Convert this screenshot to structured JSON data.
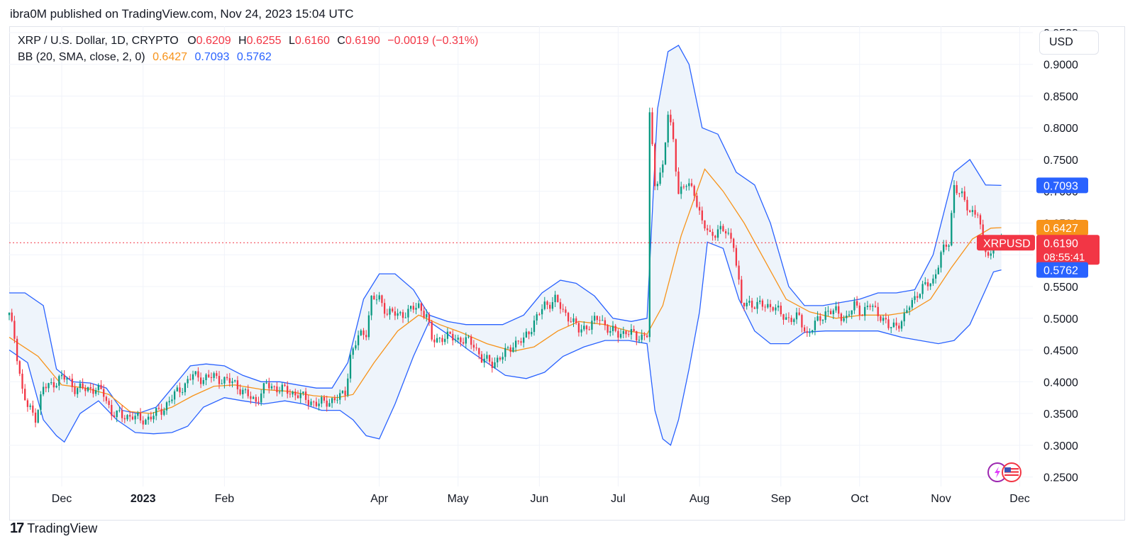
{
  "header": {
    "published": "ibra0M published on TradingView.com, Nov 24, 2023 15:04 UTC"
  },
  "legend": {
    "symbol": "XRP / U.S. Dollar, 1D, CRYPTO",
    "o_label": "O",
    "o_value": "0.6209",
    "h_label": "H",
    "h_value": "0.6255",
    "l_label": "L",
    "l_value": "0.6160",
    "c_label": "C",
    "c_value": "0.6190",
    "change": "−0.0019 (−0.31%)",
    "bb_label": "BB (20, SMA, close, 2, 0)",
    "bb_basis": "0.6427",
    "bb_upper": "0.7093",
    "bb_lower": "0.5762"
  },
  "currency_button": "USD",
  "price_tags": {
    "upper": "0.7093",
    "basis": "0.6427",
    "last": "0.6190",
    "countdown": "08:55:41",
    "lower": "0.5762",
    "symbol_tag": "XRPUSD"
  },
  "footer": {
    "brand": "TradingView",
    "mark": "17"
  },
  "colors": {
    "up": "#089981",
    "down": "#f23645",
    "basis": "#f7931a",
    "band": "#2962ff",
    "band_fill": "#eef4fb",
    "grid": "#f0f3fa"
  },
  "chart_data": {
    "type": "candlestick",
    "title": "XRP / U.S. Dollar, 1D, CRYPTO",
    "x_range": [
      "2022-11-11",
      "2023-12-06"
    ],
    "y_range": [
      0.235,
      0.96
    ],
    "y_ticks": [
      "0.2500",
      "0.3000",
      "0.3500",
      "0.4000",
      "0.4500",
      "0.5000",
      "0.5500",
      "0.6000",
      "0.6500",
      "0.7000",
      "0.7500",
      "0.8000",
      "0.8500",
      "0.9000",
      "0.9500"
    ],
    "x_ticks": [
      {
        "label": "Dec",
        "date": "2022-12-01",
        "bold": false
      },
      {
        "label": "2023",
        "date": "2023-01-01",
        "bold": true
      },
      {
        "label": "Feb",
        "date": "2023-02-01",
        "bold": false
      },
      {
        "label": "Apr",
        "date": "2023-04-01",
        "bold": false
      },
      {
        "label": "May",
        "date": "2023-05-01",
        "bold": false
      },
      {
        "label": "Jun",
        "date": "2023-06-01",
        "bold": false
      },
      {
        "label": "Jul",
        "date": "2023-07-01",
        "bold": false
      },
      {
        "label": "Aug",
        "date": "2023-08-01",
        "bold": false
      },
      {
        "label": "Sep",
        "date": "2023-09-01",
        "bold": false
      },
      {
        "label": "Oct",
        "date": "2023-10-01",
        "bold": false
      },
      {
        "label": "Nov",
        "date": "2023-11-01",
        "bold": false
      },
      {
        "label": "Dec",
        "date": "2023-12-01",
        "bold": false
      }
    ],
    "last_price": 0.619,
    "close_series": [
      [
        "2022-11-11",
        0.505
      ],
      [
        "2022-11-13",
        0.47
      ],
      [
        "2022-11-16",
        0.385
      ],
      [
        "2022-11-18",
        0.36
      ],
      [
        "2022-11-21",
        0.345
      ],
      [
        "2022-11-24",
        0.39
      ],
      [
        "2022-11-27",
        0.395
      ],
      [
        "2022-11-30",
        0.405
      ],
      [
        "2022-12-03",
        0.405
      ],
      [
        "2022-12-06",
        0.39
      ],
      [
        "2022-12-10",
        0.388
      ],
      [
        "2022-12-14",
        0.39
      ],
      [
        "2022-12-17",
        0.38
      ],
      [
        "2022-12-20",
        0.352
      ],
      [
        "2022-12-24",
        0.345
      ],
      [
        "2022-12-28",
        0.347
      ],
      [
        "2022-12-31",
        0.338
      ],
      [
        "2023-01-04",
        0.345
      ],
      [
        "2023-01-08",
        0.355
      ],
      [
        "2023-01-12",
        0.375
      ],
      [
        "2023-01-16",
        0.392
      ],
      [
        "2023-01-20",
        0.41
      ],
      [
        "2023-01-24",
        0.405
      ],
      [
        "2023-01-28",
        0.408
      ],
      [
        "2023-02-01",
        0.402
      ],
      [
        "2023-02-05",
        0.398
      ],
      [
        "2023-02-09",
        0.38
      ],
      [
        "2023-02-13",
        0.37
      ],
      [
        "2023-02-17",
        0.395
      ],
      [
        "2023-02-21",
        0.39
      ],
      [
        "2023-02-25",
        0.385
      ],
      [
        "2023-03-01",
        0.38
      ],
      [
        "2023-03-05",
        0.37
      ],
      [
        "2023-03-09",
        0.365
      ],
      [
        "2023-03-13",
        0.37
      ],
      [
        "2023-03-17",
        0.375
      ],
      [
        "2023-03-19",
        0.385
      ],
      [
        "2023-03-21",
        0.44
      ],
      [
        "2023-03-24",
        0.47
      ],
      [
        "2023-03-27",
        0.48
      ],
      [
        "2023-03-29",
        0.53
      ],
      [
        "2023-04-01",
        0.53
      ],
      [
        "2023-04-04",
        0.51
      ],
      [
        "2023-04-08",
        0.505
      ],
      [
        "2023-04-12",
        0.51
      ],
      [
        "2023-04-16",
        0.52
      ],
      [
        "2023-04-19",
        0.505
      ],
      [
        "2023-04-21",
        0.465
      ],
      [
        "2023-04-25",
        0.47
      ],
      [
        "2023-04-29",
        0.47
      ],
      [
        "2023-05-03",
        0.465
      ],
      [
        "2023-05-07",
        0.46
      ],
      [
        "2023-05-10",
        0.435
      ],
      [
        "2023-05-14",
        0.43
      ],
      [
        "2023-05-18",
        0.44
      ],
      [
        "2023-05-22",
        0.46
      ],
      [
        "2023-05-26",
        0.465
      ],
      [
        "2023-05-30",
        0.495
      ],
      [
        "2023-06-03",
        0.52
      ],
      [
        "2023-06-07",
        0.53
      ],
      [
        "2023-06-10",
        0.51
      ],
      [
        "2023-06-13",
        0.5
      ],
      [
        "2023-06-16",
        0.48
      ],
      [
        "2023-06-20",
        0.49
      ],
      [
        "2023-06-24",
        0.5
      ],
      [
        "2023-06-28",
        0.48
      ],
      [
        "2023-07-01",
        0.475
      ],
      [
        "2023-07-04",
        0.48
      ],
      [
        "2023-07-08",
        0.47
      ],
      [
        "2023-07-12",
        0.475
      ],
      [
        "2023-07-13",
        0.82
      ],
      [
        "2023-07-15",
        0.71
      ],
      [
        "2023-07-18",
        0.74
      ],
      [
        "2023-07-20",
        0.82
      ],
      [
        "2023-07-22",
        0.78
      ],
      [
        "2023-07-24",
        0.7
      ],
      [
        "2023-07-27",
        0.71
      ],
      [
        "2023-07-30",
        0.7
      ],
      [
        "2023-08-02",
        0.65
      ],
      [
        "2023-08-05",
        0.63
      ],
      [
        "2023-08-08",
        0.64
      ],
      [
        "2023-08-11",
        0.635
      ],
      [
        "2023-08-14",
        0.62
      ],
      [
        "2023-08-17",
        0.52
      ],
      [
        "2023-08-20",
        0.525
      ],
      [
        "2023-08-23",
        0.52
      ],
      [
        "2023-08-26",
        0.52
      ],
      [
        "2023-08-29",
        0.52
      ],
      [
        "2023-09-01",
        0.505
      ],
      [
        "2023-09-04",
        0.5
      ],
      [
        "2023-09-08",
        0.5
      ],
      [
        "2023-09-11",
        0.475
      ],
      [
        "2023-09-14",
        0.49
      ],
      [
        "2023-09-18",
        0.51
      ],
      [
        "2023-09-22",
        0.51
      ],
      [
        "2023-09-26",
        0.5
      ],
      [
        "2023-09-29",
        0.52
      ],
      [
        "2023-10-02",
        0.51
      ],
      [
        "2023-10-05",
        0.52
      ],
      [
        "2023-10-09",
        0.505
      ],
      [
        "2023-10-12",
        0.485
      ],
      [
        "2023-10-15",
        0.49
      ],
      [
        "2023-10-18",
        0.5
      ],
      [
        "2023-10-20",
        0.52
      ],
      [
        "2023-10-23",
        0.54
      ],
      [
        "2023-10-26",
        0.55
      ],
      [
        "2023-10-29",
        0.56
      ],
      [
        "2023-11-01",
        0.6
      ],
      [
        "2023-11-04",
        0.62
      ],
      [
        "2023-11-06",
        0.71
      ],
      [
        "2023-11-09",
        0.69
      ],
      [
        "2023-11-12",
        0.67
      ],
      [
        "2023-11-15",
        0.665
      ],
      [
        "2023-11-17",
        0.615
      ],
      [
        "2023-11-20",
        0.6
      ],
      [
        "2023-11-22",
        0.62
      ],
      [
        "2023-11-24",
        0.619
      ]
    ],
    "bb_upper_series": [
      [
        "2022-11-11",
        0.54
      ],
      [
        "2022-11-17",
        0.54
      ],
      [
        "2022-11-24",
        0.52
      ],
      [
        "2022-11-29",
        0.42
      ],
      [
        "2022-12-05",
        0.4
      ],
      [
        "2022-12-12",
        0.398
      ],
      [
        "2022-12-18",
        0.39
      ],
      [
        "2022-12-24",
        0.355
      ],
      [
        "2022-12-30",
        0.35
      ],
      [
        "2023-01-06",
        0.36
      ],
      [
        "2023-01-13",
        0.395
      ],
      [
        "2023-01-19",
        0.425
      ],
      [
        "2023-01-25",
        0.428
      ],
      [
        "2023-02-01",
        0.425
      ],
      [
        "2023-02-08",
        0.41
      ],
      [
        "2023-02-15",
        0.4
      ],
      [
        "2023-02-22",
        0.4
      ],
      [
        "2023-03-01",
        0.395
      ],
      [
        "2023-03-08",
        0.39
      ],
      [
        "2023-03-14",
        0.39
      ],
      [
        "2023-03-20",
        0.43
      ],
      [
        "2023-03-26",
        0.53
      ],
      [
        "2023-04-01",
        0.57
      ],
      [
        "2023-04-07",
        0.57
      ],
      [
        "2023-04-14",
        0.545
      ],
      [
        "2023-04-20",
        0.505
      ],
      [
        "2023-04-27",
        0.495
      ],
      [
        "2023-05-04",
        0.49
      ],
      [
        "2023-05-11",
        0.49
      ],
      [
        "2023-05-18",
        0.49
      ],
      [
        "2023-05-26",
        0.505
      ],
      [
        "2023-06-02",
        0.54
      ],
      [
        "2023-06-09",
        0.56
      ],
      [
        "2023-06-15",
        0.555
      ],
      [
        "2023-06-22",
        0.535
      ],
      [
        "2023-06-29",
        0.5
      ],
      [
        "2023-07-06",
        0.495
      ],
      [
        "2023-07-12",
        0.5
      ],
      [
        "2023-07-16",
        0.83
      ],
      [
        "2023-07-20",
        0.92
      ],
      [
        "2023-07-24",
        0.93
      ],
      [
        "2023-07-28",
        0.9
      ],
      [
        "2023-08-02",
        0.8
      ],
      [
        "2023-08-08",
        0.79
      ],
      [
        "2023-08-15",
        0.73
      ],
      [
        "2023-08-22",
        0.71
      ],
      [
        "2023-08-28",
        0.65
      ],
      [
        "2023-09-04",
        0.55
      ],
      [
        "2023-09-10",
        0.52
      ],
      [
        "2023-09-17",
        0.52
      ],
      [
        "2023-09-24",
        0.525
      ],
      [
        "2023-10-01",
        0.53
      ],
      [
        "2023-10-08",
        0.54
      ],
      [
        "2023-10-15",
        0.54
      ],
      [
        "2023-10-22",
        0.545
      ],
      [
        "2023-10-29",
        0.6
      ],
      [
        "2023-11-06",
        0.73
      ],
      [
        "2023-11-12",
        0.75
      ],
      [
        "2023-11-18",
        0.71
      ],
      [
        "2023-11-24",
        0.7093
      ]
    ],
    "bb_basis_series": [
      [
        "2022-11-11",
        0.47
      ],
      [
        "2022-11-22",
        0.44
      ],
      [
        "2022-12-01",
        0.395
      ],
      [
        "2022-12-10",
        0.39
      ],
      [
        "2022-12-19",
        0.38
      ],
      [
        "2022-12-27",
        0.353
      ],
      [
        "2023-01-04",
        0.35
      ],
      [
        "2023-01-12",
        0.36
      ],
      [
        "2023-01-20",
        0.378
      ],
      [
        "2023-01-28",
        0.393
      ],
      [
        "2023-02-05",
        0.395
      ],
      [
        "2023-02-15",
        0.388
      ],
      [
        "2023-02-25",
        0.385
      ],
      [
        "2023-03-07",
        0.378
      ],
      [
        "2023-03-16",
        0.375
      ],
      [
        "2023-03-22",
        0.38
      ],
      [
        "2023-03-30",
        0.43
      ],
      [
        "2023-04-08",
        0.48
      ],
      [
        "2023-04-16",
        0.505
      ],
      [
        "2023-04-24",
        0.49
      ],
      [
        "2023-05-02",
        0.478
      ],
      [
        "2023-05-12",
        0.46
      ],
      [
        "2023-05-22",
        0.448
      ],
      [
        "2023-05-30",
        0.455
      ],
      [
        "2023-06-08",
        0.48
      ],
      [
        "2023-06-16",
        0.495
      ],
      [
        "2023-06-26",
        0.49
      ],
      [
        "2023-07-05",
        0.48
      ],
      [
        "2023-07-12",
        0.475
      ],
      [
        "2023-07-18",
        0.52
      ],
      [
        "2023-07-25",
        0.63
      ],
      [
        "2023-07-31",
        0.7
      ],
      [
        "2023-08-03",
        0.735
      ],
      [
        "2023-08-10",
        0.7
      ],
      [
        "2023-08-18",
        0.65
      ],
      [
        "2023-08-26",
        0.59
      ],
      [
        "2023-09-03",
        0.53
      ],
      [
        "2023-09-12",
        0.51
      ],
      [
        "2023-09-22",
        0.5
      ],
      [
        "2023-10-02",
        0.505
      ],
      [
        "2023-10-12",
        0.505
      ],
      [
        "2023-10-20",
        0.51
      ],
      [
        "2023-10-28",
        0.53
      ],
      [
        "2023-11-05",
        0.58
      ],
      [
        "2023-11-13",
        0.625
      ],
      [
        "2023-11-20",
        0.642
      ],
      [
        "2023-11-24",
        0.6427
      ]
    ],
    "bb_lower_series": [
      [
        "2022-11-11",
        0.45
      ],
      [
        "2022-11-18",
        0.43
      ],
      [
        "2022-11-24",
        0.34
      ],
      [
        "2022-11-29",
        0.315
      ],
      [
        "2022-12-02",
        0.305
      ],
      [
        "2022-12-08",
        0.35
      ],
      [
        "2022-12-15",
        0.37
      ],
      [
        "2022-12-22",
        0.34
      ],
      [
        "2022-12-29",
        0.32
      ],
      [
        "2023-01-05",
        0.318
      ],
      [
        "2023-01-12",
        0.32
      ],
      [
        "2023-01-18",
        0.33
      ],
      [
        "2023-01-24",
        0.36
      ],
      [
        "2023-02-01",
        0.375
      ],
      [
        "2023-02-08",
        0.37
      ],
      [
        "2023-02-16",
        0.365
      ],
      [
        "2023-02-24",
        0.37
      ],
      [
        "2023-03-03",
        0.365
      ],
      [
        "2023-03-10",
        0.355
      ],
      [
        "2023-03-17",
        0.355
      ],
      [
        "2023-03-22",
        0.34
      ],
      [
        "2023-03-27",
        0.315
      ],
      [
        "2023-04-01",
        0.31
      ],
      [
        "2023-04-07",
        0.365
      ],
      [
        "2023-04-14",
        0.44
      ],
      [
        "2023-04-20",
        0.495
      ],
      [
        "2023-04-27",
        0.475
      ],
      [
        "2023-05-05",
        0.45
      ],
      [
        "2023-05-12",
        0.43
      ],
      [
        "2023-05-19",
        0.41
      ],
      [
        "2023-05-27",
        0.405
      ],
      [
        "2023-06-03",
        0.415
      ],
      [
        "2023-06-10",
        0.44
      ],
      [
        "2023-06-18",
        0.455
      ],
      [
        "2023-06-26",
        0.465
      ],
      [
        "2023-07-05",
        0.465
      ],
      [
        "2023-07-12",
        0.46
      ],
      [
        "2023-07-15",
        0.355
      ],
      [
        "2023-07-18",
        0.31
      ],
      [
        "2023-07-21",
        0.3
      ],
      [
        "2023-07-24",
        0.34
      ],
      [
        "2023-07-28",
        0.42
      ],
      [
        "2023-08-01",
        0.51
      ],
      [
        "2023-08-04",
        0.62
      ],
      [
        "2023-08-10",
        0.61
      ],
      [
        "2023-08-16",
        0.53
      ],
      [
        "2023-08-22",
        0.48
      ],
      [
        "2023-08-28",
        0.46
      ],
      [
        "2023-09-04",
        0.46
      ],
      [
        "2023-09-10",
        0.478
      ],
      [
        "2023-09-18",
        0.48
      ],
      [
        "2023-09-28",
        0.48
      ],
      [
        "2023-10-08",
        0.48
      ],
      [
        "2023-10-17",
        0.47
      ],
      [
        "2023-10-24",
        0.465
      ],
      [
        "2023-10-31",
        0.46
      ],
      [
        "2023-11-06",
        0.465
      ],
      [
        "2023-11-12",
        0.49
      ],
      [
        "2023-11-18",
        0.545
      ],
      [
        "2023-11-21",
        0.573
      ],
      [
        "2023-11-24",
        0.5762
      ]
    ]
  }
}
